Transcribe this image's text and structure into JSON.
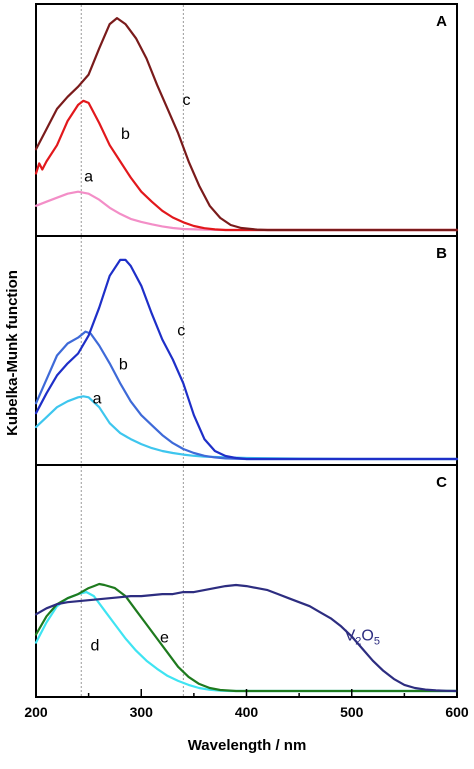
{
  "chart_data": {
    "type": "line",
    "xlabel": "Wavelength / nm",
    "ylabel": "Kubelka-Munk function",
    "xlim": [
      200,
      600
    ],
    "x_ticks": [
      "200",
      "300",
      "400",
      "500",
      "600"
    ],
    "reference_lines_x": [
      243,
      340
    ],
    "panels": [
      {
        "id": "A",
        "letter": "A",
        "ylim": [
          0,
          1.1
        ],
        "series": [
          {
            "name": "a",
            "color": "#f38ec7",
            "points": [
              [
                200,
                0.12
              ],
              [
                210,
                0.14
              ],
              [
                220,
                0.16
              ],
              [
                230,
                0.18
              ],
              [
                240,
                0.19
              ],
              [
                250,
                0.18
              ],
              [
                260,
                0.15
              ],
              [
                270,
                0.11
              ],
              [
                280,
                0.08
              ],
              [
                290,
                0.055
              ],
              [
                300,
                0.04
              ],
              [
                310,
                0.028
              ],
              [
                320,
                0.018
              ],
              [
                330,
                0.01
              ],
              [
                340,
                0.005
              ],
              [
                360,
                0.002
              ],
              [
                380,
                0.0
              ],
              [
                600,
                0.0
              ]
            ]
          },
          {
            "name": "b",
            "color": "#e2181c",
            "points": [
              [
                200,
                0.28
              ],
              [
                203,
                0.33
              ],
              [
                206,
                0.3
              ],
              [
                210,
                0.34
              ],
              [
                220,
                0.42
              ],
              [
                230,
                0.54
              ],
              [
                240,
                0.62
              ],
              [
                245,
                0.64
              ],
              [
                250,
                0.63
              ],
              [
                260,
                0.53
              ],
              [
                270,
                0.42
              ],
              [
                280,
                0.34
              ],
              [
                290,
                0.26
              ],
              [
                300,
                0.19
              ],
              [
                310,
                0.14
              ],
              [
                320,
                0.095
              ],
              [
                330,
                0.062
              ],
              [
                340,
                0.038
              ],
              [
                350,
                0.02
              ],
              [
                360,
                0.009
              ],
              [
                370,
                0.003
              ],
              [
                380,
                0.0
              ],
              [
                600,
                0.0
              ]
            ]
          },
          {
            "name": "c",
            "color": "#7a1b1b",
            "points": [
              [
                200,
                0.4
              ],
              [
                210,
                0.5
              ],
              [
                220,
                0.6
              ],
              [
                230,
                0.66
              ],
              [
                240,
                0.71
              ],
              [
                250,
                0.77
              ],
              [
                260,
                0.9
              ],
              [
                270,
                1.02
              ],
              [
                277,
                1.05
              ],
              [
                285,
                1.02
              ],
              [
                295,
                0.95
              ],
              [
                305,
                0.85
              ],
              [
                315,
                0.72
              ],
              [
                325,
                0.6
              ],
              [
                335,
                0.48
              ],
              [
                345,
                0.34
              ],
              [
                355,
                0.22
              ],
              [
                365,
                0.12
              ],
              [
                375,
                0.06
              ],
              [
                385,
                0.025
              ],
              [
                395,
                0.01
              ],
              [
                410,
                0.002
              ],
              [
                420,
                0.0
              ],
              [
                600,
                0.0
              ]
            ]
          }
        ],
        "labels": [
          {
            "text": "a",
            "x": 250,
            "y": 0.24
          },
          {
            "text": "b",
            "x": 285,
            "y": 0.45
          },
          {
            "text": "c",
            "x": 343,
            "y": 0.62
          }
        ]
      },
      {
        "id": "B",
        "letter": "B",
        "ylim": [
          0,
          1.1
        ],
        "series": [
          {
            "name": "a",
            "color": "#3ec6ee",
            "points": [
              [
                200,
                0.16
              ],
              [
                210,
                0.21
              ],
              [
                220,
                0.26
              ],
              [
                230,
                0.29
              ],
              [
                240,
                0.31
              ],
              [
                245,
                0.315
              ],
              [
                250,
                0.31
              ],
              [
                260,
                0.26
              ],
              [
                270,
                0.18
              ],
              [
                280,
                0.13
              ],
              [
                290,
                0.1
              ],
              [
                300,
                0.075
              ],
              [
                310,
                0.055
              ],
              [
                320,
                0.04
              ],
              [
                330,
                0.03
              ],
              [
                340,
                0.022
              ],
              [
                350,
                0.016
              ],
              [
                360,
                0.012
              ],
              [
                380,
                0.008
              ],
              [
                400,
                0.005
              ],
              [
                450,
                0.002
              ],
              [
                500,
                0.0
              ],
              [
                600,
                0.0
              ]
            ]
          },
          {
            "name": "b",
            "color": "#3e6ad8",
            "points": [
              [
                200,
                0.28
              ],
              [
                210,
                0.4
              ],
              [
                220,
                0.52
              ],
              [
                230,
                0.58
              ],
              [
                240,
                0.61
              ],
              [
                247,
                0.64
              ],
              [
                252,
                0.63
              ],
              [
                260,
                0.57
              ],
              [
                270,
                0.48
              ],
              [
                280,
                0.38
              ],
              [
                290,
                0.29
              ],
              [
                300,
                0.22
              ],
              [
                310,
                0.17
              ],
              [
                320,
                0.12
              ],
              [
                330,
                0.08
              ],
              [
                340,
                0.05
              ],
              [
                350,
                0.03
              ],
              [
                360,
                0.016
              ],
              [
                370,
                0.008
              ],
              [
                380,
                0.003
              ],
              [
                400,
                0.0
              ],
              [
                600,
                0.0
              ]
            ]
          },
          {
            "name": "c",
            "color": "#1e2fc8",
            "points": [
              [
                200,
                0.23
              ],
              [
                210,
                0.33
              ],
              [
                220,
                0.42
              ],
              [
                230,
                0.48
              ],
              [
                240,
                0.53
              ],
              [
                250,
                0.62
              ],
              [
                260,
                0.76
              ],
              [
                270,
                0.92
              ],
              [
                280,
                1.0
              ],
              [
                285,
                1.0
              ],
              [
                290,
                0.97
              ],
              [
                300,
                0.87
              ],
              [
                310,
                0.73
              ],
              [
                320,
                0.6
              ],
              [
                330,
                0.5
              ],
              [
                340,
                0.38
              ],
              [
                350,
                0.22
              ],
              [
                360,
                0.1
              ],
              [
                370,
                0.04
              ],
              [
                380,
                0.015
              ],
              [
                390,
                0.005
              ],
              [
                400,
                0.0
              ],
              [
                600,
                0.0
              ]
            ]
          }
        ],
        "labels": [
          {
            "text": "a",
            "x": 258,
            "y": 0.28
          },
          {
            "text": "b",
            "x": 283,
            "y": 0.45
          },
          {
            "text": "c",
            "x": 338,
            "y": 0.62
          }
        ]
      },
      {
        "id": "C",
        "letter": "C",
        "ylim": [
          0,
          1.1
        ],
        "series": [
          {
            "name": "d",
            "color": "#3fe4f2",
            "points": [
              [
                200,
                0.24
              ],
              [
                210,
                0.34
              ],
              [
                220,
                0.42
              ],
              [
                230,
                0.46
              ],
              [
                240,
                0.48
              ],
              [
                248,
                0.49
              ],
              [
                255,
                0.47
              ],
              [
                265,
                0.4
              ],
              [
                275,
                0.33
              ],
              [
                285,
                0.26
              ],
              [
                295,
                0.2
              ],
              [
                305,
                0.15
              ],
              [
                315,
                0.11
              ],
              [
                325,
                0.075
              ],
              [
                335,
                0.05
              ],
              [
                345,
                0.03
              ],
              [
                355,
                0.015
              ],
              [
                365,
                0.006
              ],
              [
                375,
                0.002
              ],
              [
                385,
                0.0
              ],
              [
                600,
                0.0
              ]
            ]
          },
          {
            "name": "e",
            "color": "#1e7a1e",
            "points": [
              [
                200,
                0.28
              ],
              [
                210,
                0.37
              ],
              [
                220,
                0.43
              ],
              [
                230,
                0.46
              ],
              [
                240,
                0.48
              ],
              [
                250,
                0.51
              ],
              [
                255,
                0.52
              ],
              [
                260,
                0.53
              ],
              [
                265,
                0.525
              ],
              [
                275,
                0.51
              ],
              [
                285,
                0.47
              ],
              [
                295,
                0.4
              ],
              [
                305,
                0.33
              ],
              [
                315,
                0.26
              ],
              [
                325,
                0.19
              ],
              [
                335,
                0.12
              ],
              [
                345,
                0.07
              ],
              [
                355,
                0.035
              ],
              [
                365,
                0.015
              ],
              [
                375,
                0.005
              ],
              [
                390,
                0.0
              ],
              [
                600,
                0.0
              ]
            ]
          },
          {
            "name": "V2O5",
            "color": "#2d2d80",
            "points": [
              [
                200,
                0.38
              ],
              [
                210,
                0.41
              ],
              [
                220,
                0.43
              ],
              [
                230,
                0.44
              ],
              [
                240,
                0.445
              ],
              [
                250,
                0.45
              ],
              [
                260,
                0.455
              ],
              [
                270,
                0.46
              ],
              [
                280,
                0.465
              ],
              [
                290,
                0.47
              ],
              [
                300,
                0.47
              ],
              [
                310,
                0.475
              ],
              [
                320,
                0.48
              ],
              [
                330,
                0.48
              ],
              [
                340,
                0.49
              ],
              [
                350,
                0.49
              ],
              [
                360,
                0.5
              ],
              [
                370,
                0.51
              ],
              [
                380,
                0.52
              ],
              [
                390,
                0.525
              ],
              [
                400,
                0.52
              ],
              [
                410,
                0.51
              ],
              [
                420,
                0.5
              ],
              [
                430,
                0.48
              ],
              [
                440,
                0.46
              ],
              [
                450,
                0.44
              ],
              [
                460,
                0.42
              ],
              [
                470,
                0.39
              ],
              [
                480,
                0.36
              ],
              [
                490,
                0.32
              ],
              [
                500,
                0.27
              ],
              [
                510,
                0.21
              ],
              [
                520,
                0.15
              ],
              [
                530,
                0.1
              ],
              [
                540,
                0.06
              ],
              [
                550,
                0.03
              ],
              [
                560,
                0.015
              ],
              [
                570,
                0.007
              ],
              [
                580,
                0.003
              ],
              [
                590,
                0.001
              ],
              [
                600,
                0.0
              ]
            ]
          }
        ],
        "labels": [
          {
            "text": "d",
            "x": 256,
            "y": 0.2
          },
          {
            "text": "e",
            "x": 322,
            "y": 0.24
          }
        ],
        "v2o5_label": {
          "base": "V",
          "sub1": "2",
          "mid": "O",
          "sub2": "5",
          "x": 510,
          "y": 0.25
        }
      }
    ]
  }
}
